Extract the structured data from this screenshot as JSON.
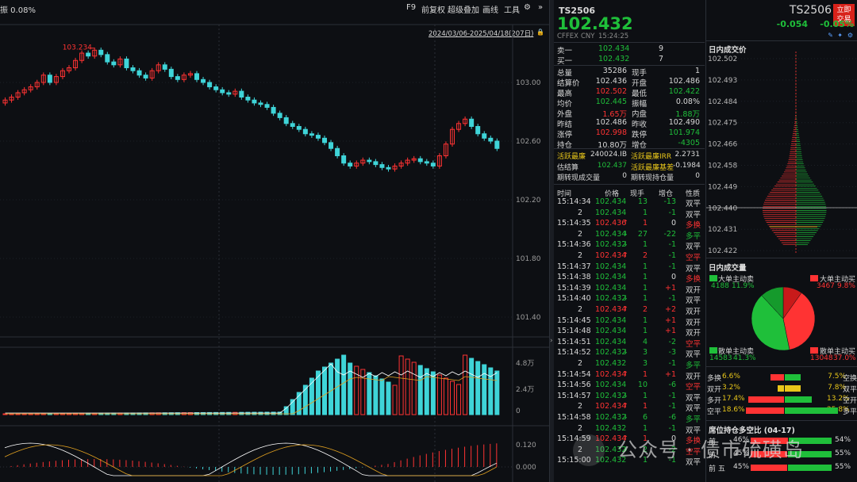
{
  "toolbar": {
    "amplitude_label": "振 0.08%",
    "f9": "F9",
    "adjust": "前复权",
    "overlay": "超级叠加",
    "draw": "画线",
    "tools": "工具",
    "date_range": "2024/03/06-2025/04/18(207日)"
  },
  "price_axis": [
    "103.00",
    "102.60",
    "102.20",
    "101.80",
    "101.40"
  ],
  "high_marker": "103.234",
  "volume_axis": [
    "4.8万",
    "2.4万",
    "0"
  ],
  "macd_axis": [
    "0.120",
    "0.000"
  ],
  "quote": {
    "symbol": "TS2506",
    "price": "102.432",
    "exchange": "CFFEX",
    "currency": "CNY",
    "time": "15:24:25",
    "symbol_right": "TS2506",
    "trade_button": "立即\n交易",
    "change": "-0.054",
    "change_pct": "-0.05%"
  },
  "order_book": [
    {
      "label": "卖一",
      "price": "102.434",
      "qty": "9"
    },
    {
      "label": "买一",
      "price": "102.432",
      "qty": "7"
    }
  ],
  "stats": [
    [
      "总量",
      "35286",
      "现手",
      "1"
    ],
    [
      "结算价",
      "102.436",
      "开盘",
      "102.486"
    ],
    [
      "最高",
      "102.502",
      "最低",
      "102.422"
    ],
    [
      "均价",
      "102.445",
      "振幅",
      "0.08%"
    ],
    [
      "外盘",
      "1.65万",
      "内盘",
      "1.88万"
    ],
    [
      "昨结",
      "102.486",
      "昨收",
      "102.490"
    ],
    [
      "涨停",
      "102.998",
      "跌停",
      "101.974"
    ],
    [
      "持仓",
      "10.80万",
      "增仓",
      "-4305"
    ]
  ],
  "ctd": [
    [
      "活跃最廉",
      "240024.IB",
      "活跃最廉IRR",
      "2.2731"
    ],
    [
      "估结算",
      "102.437",
      "活跃最廉基差",
      "-0.1984"
    ],
    [
      "期转现成交量",
      "0",
      "期转现持仓量",
      "0"
    ]
  ],
  "ticks_header": [
    "时间",
    "价格",
    "现手",
    "增仓",
    "性质"
  ],
  "ticks": [
    [
      "15:14:34",
      "102.434",
      "",
      "13",
      "-13",
      "双平"
    ],
    [
      "2",
      "102.434",
      "",
      "1",
      "-1",
      "双平"
    ],
    [
      "15:14:35",
      "102.436",
      "up",
      "1",
      "0",
      "多换"
    ],
    [
      "2",
      "102.434",
      "down",
      "27",
      "-22",
      "多平"
    ],
    [
      "15:14:36",
      "102.432",
      "down",
      "1",
      "-1",
      "双平"
    ],
    [
      "2",
      "102.434",
      "up",
      "2",
      "-1",
      "空平"
    ],
    [
      "15:14:37",
      "102.434",
      "",
      "1",
      "-1",
      "双平"
    ],
    [
      "15:14:38",
      "102.434",
      "",
      "1",
      "0",
      "多换"
    ],
    [
      "15:14:39",
      "102.434",
      "",
      "1",
      "+1",
      "双开"
    ],
    [
      "15:14:40",
      "102.432",
      "down",
      "1",
      "-1",
      "双平"
    ],
    [
      "2",
      "102.434",
      "up",
      "2",
      "+2",
      "双开"
    ],
    [
      "15:14:45",
      "102.434",
      "",
      "1",
      "+1",
      "双开"
    ],
    [
      "15:14:48",
      "102.434",
      "",
      "1",
      "+1",
      "双开"
    ],
    [
      "15:14:51",
      "102.434",
      "",
      "4",
      "-2",
      "空平"
    ],
    [
      "15:14:52",
      "102.432",
      "down",
      "3",
      "-3",
      "双平"
    ],
    [
      "2",
      "102.432",
      "",
      "3",
      "-1",
      "多平"
    ],
    [
      "15:14:54",
      "102.434",
      "up",
      "1",
      "+1",
      "双开"
    ],
    [
      "15:14:56",
      "102.434",
      "",
      "10",
      "-6",
      "空平"
    ],
    [
      "15:14:57",
      "102.432",
      "down",
      "1",
      "-1",
      "双平"
    ],
    [
      "2",
      "102.434",
      "up",
      "1",
      "-1",
      "双平"
    ],
    [
      "15:14:58",
      "102.432",
      "down",
      "6",
      "-6",
      "多平"
    ],
    [
      "2",
      "102.432",
      "",
      "1",
      "-1",
      "双平"
    ],
    [
      "15:14:59",
      "102.434",
      "up",
      "1",
      "0",
      "多换"
    ],
    [
      "2",
      "102.432",
      "down",
      "2",
      "-2",
      "空平"
    ],
    [
      "15:15:00",
      "102.432",
      "",
      "1",
      "-1",
      "双平"
    ]
  ],
  "intraday_vp": {
    "title": "日内成交价",
    "levels": [
      "102.502",
      "102.493",
      "102.484",
      "102.475",
      "102.466",
      "102.458",
      "102.449",
      "102.440",
      "102.431",
      "102.422"
    ]
  },
  "intraday_vol": {
    "title": "日内成交量",
    "big_sell_label": "大单主动卖",
    "big_sell": "4188",
    "big_sell_pct": "11.9%",
    "big_buy_label": "大单主动买",
    "big_buy": "3467",
    "big_buy_pct": "9.8%",
    "small_sell_label": "散单主动卖",
    "small_sell": "14583",
    "small_sell_pct": "41.3%",
    "small_buy_label": "散单主动买",
    "small_buy": "13048",
    "small_buy_pct": "37.0%"
  },
  "nature": [
    {
      "l": "多换",
      "lp": "6.6%",
      "rp": "7.5%",
      "r": "空换",
      "lv": 0.066,
      "rv": 0.075
    },
    {
      "l": "双开",
      "lp": "3.2%",
      "rp": "7.8%",
      "r": "双平",
      "lv": 0.032,
      "rv": 0.078
    },
    {
      "l": "多开",
      "lp": "17.4%",
      "rp": "13.2%",
      "r": "空开",
      "lv": 0.174,
      "rv": 0.132
    },
    {
      "l": "空平",
      "lp": "18.6%",
      "rp": "25.8%",
      "r": "多平",
      "lv": 0.186,
      "rv": 0.258
    }
  ],
  "positions": {
    "title": "席位持仓多空比 (04-17)",
    "rows": [
      {
        "label": "前",
        "lp": "46%",
        "rp": "54%",
        "l": 0.46
      },
      {
        "label": "前",
        "lp": "45%",
        "rp": "55%",
        "l": 0.45
      },
      {
        "label": "前 五",
        "lp": "45%",
        "rp": "55%",
        "l": 0.45
      }
    ]
  },
  "watermark": "公众号 · 债市硫磺岛",
  "colors": {
    "up": "#ff3333",
    "down": "#1fbf3a",
    "candle_down": "#3fd4d8"
  }
}
